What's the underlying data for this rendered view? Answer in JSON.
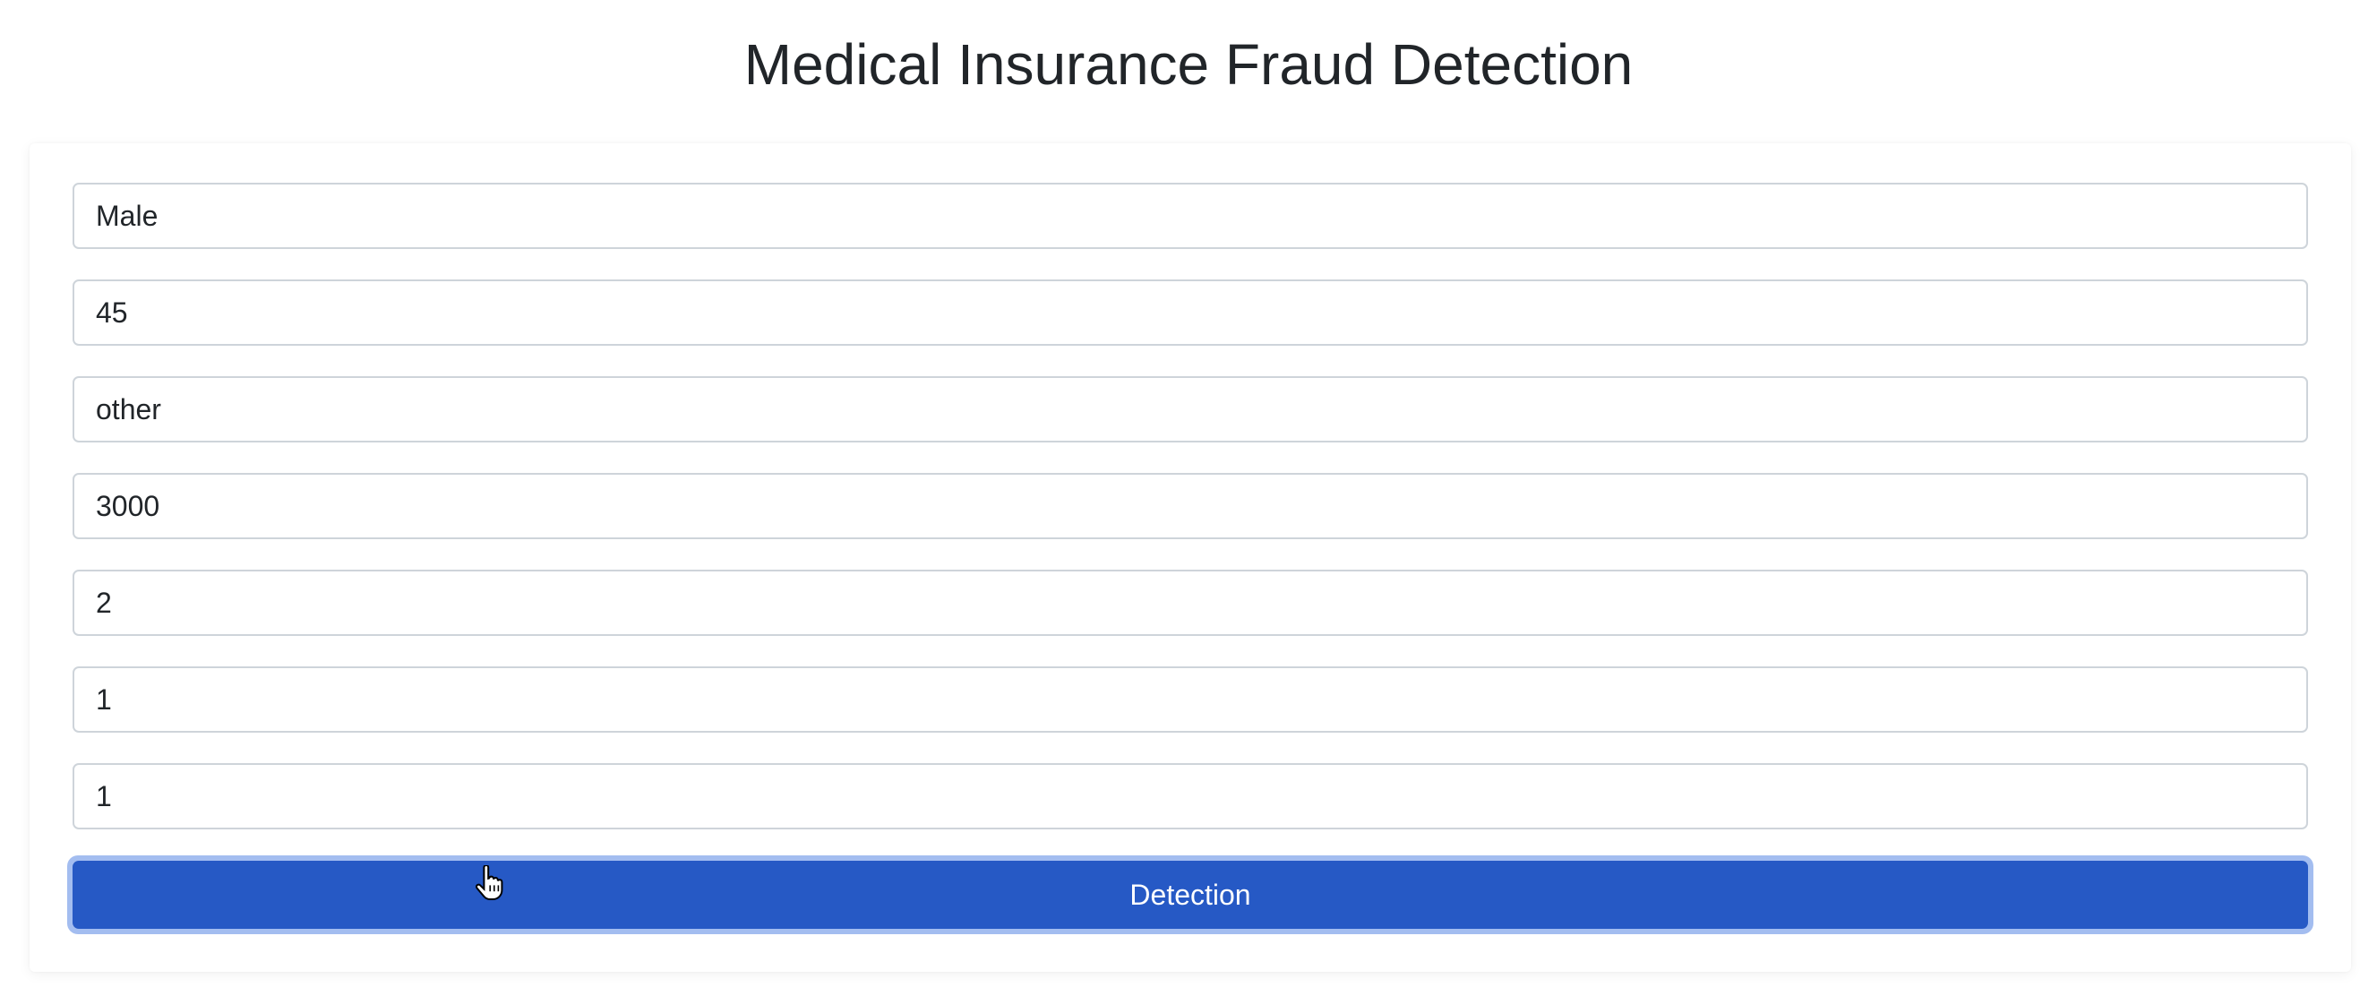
{
  "page": {
    "title": "Medical Insurance Fraud Detection"
  },
  "form": {
    "fields": [
      {
        "value": "Male"
      },
      {
        "value": "45"
      },
      {
        "value": "other"
      },
      {
        "value": "3000"
      },
      {
        "value": "2"
      },
      {
        "value": "1"
      },
      {
        "value": "1"
      }
    ],
    "submit_label": "Detection"
  },
  "colors": {
    "button": "#2659c5",
    "button_focus_ring": "#a3bdf0",
    "field_border": "#ced4da",
    "text": "#212529"
  },
  "cursor": {
    "icon": "hand-pointer-icon"
  }
}
